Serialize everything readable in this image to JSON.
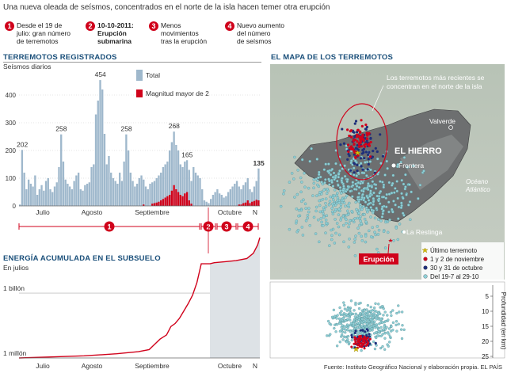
{
  "subtitle": "Una nueva oleada de seísmos, concentrados en el norte de la isla hacen temer otra erupción",
  "milestones": [
    {
      "n": "1",
      "l1": "Desde el 19 de",
      "l2": "julio: gran número",
      "l3": "de terremotos",
      "bold": false
    },
    {
      "n": "2",
      "l1": "10-10-2011:",
      "l2": "Erupción",
      "l3": "submarina",
      "bold": true
    },
    {
      "n": "3",
      "l1": "Menos",
      "l2": "movimientos",
      "l3": "tras la erupción",
      "bold": false
    },
    {
      "n": "4",
      "l1": "Nuevo aumento",
      "l2": "del número",
      "l3": "de seísmos",
      "bold": false
    }
  ],
  "colors": {
    "total": "#9fb8cc",
    "magnitude": "#d0021b",
    "header": "#1a4f7a",
    "energy_fill": "#dde2e6"
  },
  "chart_data": [
    {
      "type": "bar",
      "title": "TERREMOTOS REGISTRADOS",
      "ylabel": "Seísmos diarios",
      "ylim": [
        0,
        480
      ],
      "yticks": [
        0,
        100,
        200,
        300,
        400
      ],
      "xtick_labels": [
        "Julio",
        "Agosto",
        "Septiembre",
        "Octubre",
        "N"
      ],
      "legend": [
        "Total",
        "Magnitud mayor de 2"
      ],
      "annotations": [
        "202",
        "258",
        "454",
        "258",
        "268",
        "165",
        "135"
      ],
      "series": [
        {
          "name": "Total",
          "values": [
            5,
            202,
            120,
            60,
            95,
            80,
            70,
            110,
            40,
            60,
            75,
            55,
            90,
            100,
            60,
            50,
            70,
            85,
            140,
            258,
            160,
            95,
            80,
            70,
            60,
            90,
            110,
            120,
            60,
            55,
            75,
            80,
            85,
            140,
            150,
            330,
            380,
            454,
            420,
            260,
            150,
            180,
            120,
            100,
            90,
            80,
            120,
            90,
            160,
            258,
            200,
            120,
            90,
            70,
            80,
            100,
            110,
            95,
            70,
            60,
            80,
            85,
            90,
            100,
            110,
            120,
            140,
            150,
            160,
            200,
            230,
            268,
            220,
            200,
            150,
            140,
            160,
            165,
            130,
            90,
            140,
            120,
            110,
            100,
            60,
            20,
            15,
            10,
            25,
            40,
            50,
            60,
            45,
            40,
            30,
            35,
            50,
            60,
            70,
            80,
            90,
            70,
            60,
            75,
            85,
            100,
            60,
            50,
            70,
            90,
            135
          ]
        },
        {
          "name": "Magnitud mayor de 2",
          "values": [
            0,
            0,
            0,
            0,
            0,
            0,
            0,
            0,
            0,
            0,
            0,
            0,
            0,
            0,
            0,
            0,
            0,
            0,
            0,
            0,
            0,
            0,
            0,
            0,
            0,
            0,
            0,
            0,
            0,
            0,
            0,
            0,
            0,
            0,
            0,
            0,
            0,
            0,
            0,
            0,
            0,
            0,
            0,
            0,
            0,
            0,
            0,
            0,
            0,
            0,
            0,
            0,
            0,
            0,
            0,
            0,
            0,
            5,
            0,
            0,
            0,
            8,
            10,
            12,
            15,
            20,
            25,
            30,
            35,
            40,
            55,
            75,
            60,
            50,
            40,
            35,
            45,
            50,
            20,
            8,
            0,
            0,
            0,
            0,
            0,
            0,
            0,
            0,
            0,
            0,
            0,
            0,
            0,
            0,
            0,
            0,
            0,
            0,
            0,
            0,
            0,
            5,
            5,
            10,
            12,
            20,
            10,
            15,
            18,
            22,
            20
          ]
        }
      ]
    },
    {
      "type": "area",
      "title": "ENERGÍA ACUMULADA EN EL SUBSUELO",
      "ylabel": "En julios",
      "scale": "log",
      "yticks": [
        "1 millón",
        "1 billón"
      ],
      "xtick_labels": [
        "Julio",
        "Agosto",
        "Septiembre",
        "Octubre",
        "N"
      ],
      "x": [
        0,
        15,
        30,
        45,
        55,
        60,
        62,
        65,
        68,
        70,
        72,
        74,
        76,
        78,
        80,
        81,
        82,
        84,
        86,
        88,
        90,
        95,
        100,
        105,
        108,
        110,
        111
      ],
      "values": [
        0,
        0.01,
        0.02,
        0.04,
        0.06,
        0.08,
        0.12,
        0.18,
        0.22,
        0.3,
        0.33,
        0.38,
        0.45,
        0.52,
        0.6,
        0.66,
        0.72,
        0.9,
        0.9,
        0.9,
        0.91,
        0.92,
        0.93,
        0.95,
        1.0,
        1.08,
        1.15
      ]
    },
    {
      "type": "scatter",
      "title": "EL MAPA DE LOS TERREMOTOS",
      "legend": [
        "Último terremoto",
        "1 y 2 de noviembre",
        "30 y 31 de octubre",
        "Del 19-7 al 29-10"
      ],
      "legend_colors": [
        "#f5d90a",
        "#d0021b",
        "#1f2f7a",
        "#8fcfd6"
      ],
      "depth_axis_label": "Profundidad (en km)",
      "depth_ticks": [
        5,
        10,
        15,
        20,
        25
      ]
    }
  ],
  "map": {
    "callout": [
      "Los terremotos más recientes se",
      "concentran en el norte de la isla"
    ],
    "island": "EL HIERRO",
    "places": [
      "Valverde",
      "Frontera",
      "La Restinga"
    ],
    "ocean": [
      "Océano",
      "Atlántico"
    ],
    "eruption": "Erupción"
  },
  "source": "Fuente: Instituto Geográfico Nacional y elaboración propia.   EL PAÍS"
}
